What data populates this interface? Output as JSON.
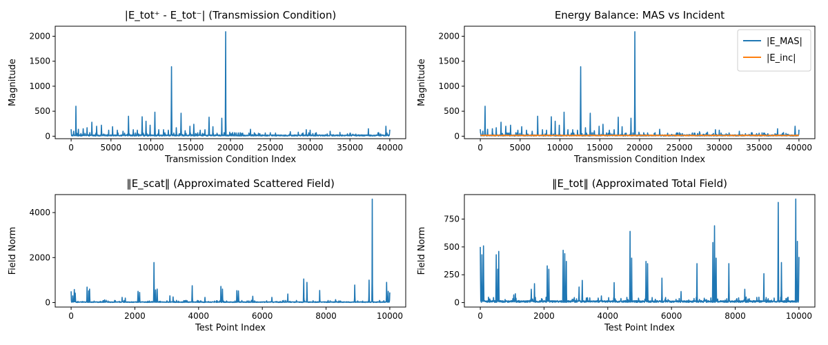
{
  "chart_data": [
    {
      "type": "line",
      "title": "|E_tot⁺ - E_tot⁻| (Transmission Condition)",
      "xlabel": "Transmission Condition Index",
      "ylabel": "Magnitude",
      "xlim": [
        -2000,
        42000
      ],
      "ylim": [
        -50,
        2200
      ],
      "xticks": [
        0,
        5000,
        10000,
        15000,
        20000,
        25000,
        30000,
        35000,
        40000
      ],
      "xtick_labels": [
        "0",
        "5000",
        "10000",
        "15000",
        "20000",
        "25000",
        "30000",
        "35000",
        "40000"
      ],
      "yticks": [
        0,
        500,
        1000,
        1500,
        2000
      ],
      "ytick_labels": [
        "0",
        "500",
        "1000",
        "1500",
        "2000"
      ],
      "grid": false,
      "colors": [
        "#1f77b4"
      ],
      "series": [
        {
          "x_range": [
            0,
            40000
          ],
          "baseline": 15,
          "peaks": [
            [
              0,
              140
            ],
            [
              300,
              100
            ],
            [
              600,
              600
            ],
            [
              900,
              140
            ],
            [
              1500,
              150
            ],
            [
              2000,
              170
            ],
            [
              2600,
              280
            ],
            [
              3200,
              200
            ],
            [
              3800,
              220
            ],
            [
              4700,
              120
            ],
            [
              5200,
              190
            ],
            [
              5800,
              120
            ],
            [
              6500,
              100
            ],
            [
              7200,
              400
            ],
            [
              7800,
              130
            ],
            [
              8300,
              120
            ],
            [
              8900,
              390
            ],
            [
              9400,
              300
            ],
            [
              9900,
              220
            ],
            [
              10500,
              480
            ],
            [
              11000,
              130
            ],
            [
              11600,
              130
            ],
            [
              12200,
              120
            ],
            [
              12600,
              1390
            ],
            [
              13200,
              170
            ],
            [
              13800,
              460
            ],
            [
              14300,
              110
            ],
            [
              14900,
              200
            ],
            [
              15400,
              240
            ],
            [
              16200,
              120
            ],
            [
              16800,
              130
            ],
            [
              17300,
              380
            ],
            [
              17800,
              190
            ],
            [
              18300,
              60
            ],
            [
              18900,
              360
            ],
            [
              19400,
              2090
            ],
            [
              19900,
              80
            ],
            [
              20500,
              70
            ],
            [
              22500,
              140
            ],
            [
              23500,
              60
            ],
            [
              25000,
              70
            ],
            [
              27500,
              90
            ],
            [
              28500,
              80
            ],
            [
              29500,
              130
            ],
            [
              30000,
              120
            ],
            [
              32500,
              100
            ],
            [
              35000,
              60
            ],
            [
              37300,
              150
            ],
            [
              39500,
              200
            ],
            [
              40000,
              130
            ]
          ]
        }
      ]
    },
    {
      "type": "line",
      "title": "Energy Balance: MAS vs Incident",
      "xlabel": "Transmission Condition Index",
      "ylabel": "Magnitude",
      "xlim": [
        -2000,
        42000
      ],
      "ylim": [
        -50,
        2200
      ],
      "xticks": [
        0,
        5000,
        10000,
        15000,
        20000,
        25000,
        30000,
        35000,
        40000
      ],
      "xtick_labels": [
        "0",
        "5000",
        "10000",
        "15000",
        "20000",
        "25000",
        "30000",
        "35000",
        "40000"
      ],
      "yticks": [
        0,
        500,
        1000,
        1500,
        2000
      ],
      "ytick_labels": [
        "0",
        "500",
        "1000",
        "1500",
        "2000"
      ],
      "grid": false,
      "legend": "top-right",
      "colors": [
        "#1f77b4",
        "#ff7f0e"
      ],
      "series": [
        {
          "name": "|E_MAS|",
          "x_range": [
            0,
            40000
          ],
          "baseline": 15,
          "peaks": [
            [
              0,
              140
            ],
            [
              300,
              100
            ],
            [
              600,
              600
            ],
            [
              900,
              140
            ],
            [
              1500,
              150
            ],
            [
              2000,
              170
            ],
            [
              2600,
              280
            ],
            [
              3200,
              200
            ],
            [
              3800,
              220
            ],
            [
              4700,
              120
            ],
            [
              5200,
              190
            ],
            [
              5800,
              120
            ],
            [
              6500,
              100
            ],
            [
              7200,
              400
            ],
            [
              7800,
              130
            ],
            [
              8300,
              120
            ],
            [
              8900,
              390
            ],
            [
              9400,
              300
            ],
            [
              9900,
              220
            ],
            [
              10500,
              480
            ],
            [
              11000,
              130
            ],
            [
              11600,
              130
            ],
            [
              12200,
              120
            ],
            [
              12600,
              1390
            ],
            [
              13200,
              170
            ],
            [
              13800,
              460
            ],
            [
              14300,
              110
            ],
            [
              14900,
              200
            ],
            [
              15400,
              240
            ],
            [
              16200,
              120
            ],
            [
              16800,
              130
            ],
            [
              17300,
              380
            ],
            [
              17800,
              190
            ],
            [
              18300,
              60
            ],
            [
              18900,
              360
            ],
            [
              19400,
              2090
            ],
            [
              19900,
              80
            ],
            [
              20500,
              70
            ],
            [
              22500,
              140
            ],
            [
              23500,
              60
            ],
            [
              25000,
              70
            ],
            [
              27500,
              90
            ],
            [
              28500,
              80
            ],
            [
              29500,
              130
            ],
            [
              30000,
              120
            ],
            [
              32500,
              100
            ],
            [
              35000,
              60
            ],
            [
              37300,
              150
            ],
            [
              39500,
              200
            ],
            [
              40000,
              130
            ]
          ]
        },
        {
          "name": "|E_inc|",
          "x_range": [
            0,
            40000
          ],
          "baseline": 15,
          "band": 8
        }
      ]
    },
    {
      "type": "line",
      "title": "‖E_scat‖ (Approximated Scattered Field)",
      "xlabel": "Test Point Index",
      "ylabel": "Field Norm",
      "xlim": [
        -500,
        10500
      ],
      "ylim": [
        -200,
        4800
      ],
      "xticks": [
        0,
        2000,
        4000,
        6000,
        8000,
        10000
      ],
      "xtick_labels": [
        "0",
        "2000",
        "4000",
        "6000",
        "8000",
        "10000"
      ],
      "yticks": [
        0,
        2000,
        4000
      ],
      "ytick_labels": [
        "0",
        "2000",
        "4000"
      ],
      "grid": false,
      "colors": [
        "#1f77b4"
      ],
      "series": [
        {
          "x_range": [
            0,
            10000
          ],
          "baseline": 20,
          "peaks": [
            [
              0,
              500
            ],
            [
              50,
              300
            ],
            [
              100,
              580
            ],
            [
              130,
              420
            ],
            [
              500,
              690
            ],
            [
              550,
              520
            ],
            [
              580,
              600
            ],
            [
              1050,
              120
            ],
            [
              1100,
              100
            ],
            [
              1600,
              230
            ],
            [
              1700,
              200
            ],
            [
              2100,
              500
            ],
            [
              2150,
              450
            ],
            [
              2600,
              1780
            ],
            [
              2650,
              560
            ],
            [
              2700,
              600
            ],
            [
              3100,
              300
            ],
            [
              3200,
              250
            ],
            [
              3800,
              750
            ],
            [
              4200,
              230
            ],
            [
              4700,
              720
            ],
            [
              4750,
              600
            ],
            [
              5200,
              530
            ],
            [
              5250,
              520
            ],
            [
              5700,
              280
            ],
            [
              6300,
              230
            ],
            [
              6800,
              380
            ],
            [
              7300,
              1050
            ],
            [
              7400,
              900
            ],
            [
              7800,
              540
            ],
            [
              8300,
              130
            ],
            [
              8900,
              780
            ],
            [
              9350,
              1000
            ],
            [
              9450,
              4600
            ],
            [
              9900,
              900
            ],
            [
              9950,
              500
            ],
            [
              10000,
              450
            ]
          ]
        }
      ]
    },
    {
      "type": "line",
      "title": "‖E_tot‖ (Approximated Total Field)",
      "xlabel": "Test Point Index",
      "ylabel": "Field Norm",
      "xlim": [
        -500,
        10500
      ],
      "ylim": [
        -40,
        970
      ],
      "xticks": [
        0,
        2000,
        4000,
        6000,
        8000,
        10000
      ],
      "xtick_labels": [
        "0",
        "2000",
        "4000",
        "6000",
        "8000",
        "10000"
      ],
      "yticks": [
        0,
        250,
        500,
        750
      ],
      "ytick_labels": [
        "0",
        "250",
        "500",
        "750"
      ],
      "grid": false,
      "colors": [
        "#1f77b4"
      ],
      "series": [
        {
          "x_range": [
            0,
            10000
          ],
          "baseline": 10,
          "peaks": [
            [
              0,
              500
            ],
            [
              50,
              430
            ],
            [
              100,
              510
            ],
            [
              500,
              430
            ],
            [
              550,
              300
            ],
            [
              580,
              460
            ],
            [
              1050,
              70
            ],
            [
              1100,
              80
            ],
            [
              1600,
              120
            ],
            [
              1700,
              170
            ],
            [
              2100,
              330
            ],
            [
              2150,
              300
            ],
            [
              2600,
              470
            ],
            [
              2650,
              440
            ],
            [
              2700,
              370
            ],
            [
              3100,
              140
            ],
            [
              3200,
              200
            ],
            [
              3800,
              60
            ],
            [
              4200,
              180
            ],
            [
              4700,
              640
            ],
            [
              4750,
              400
            ],
            [
              5200,
              370
            ],
            [
              5250,
              350
            ],
            [
              5700,
              220
            ],
            [
              6300,
              100
            ],
            [
              6800,
              350
            ],
            [
              7300,
              540
            ],
            [
              7350,
              690
            ],
            [
              7400,
              400
            ],
            [
              7800,
              350
            ],
            [
              8300,
              120
            ],
            [
              8900,
              260
            ],
            [
              9350,
              900
            ],
            [
              9450,
              360
            ],
            [
              9900,
              930
            ],
            [
              9950,
              550
            ],
            [
              10000,
              410
            ]
          ]
        }
      ]
    }
  ]
}
